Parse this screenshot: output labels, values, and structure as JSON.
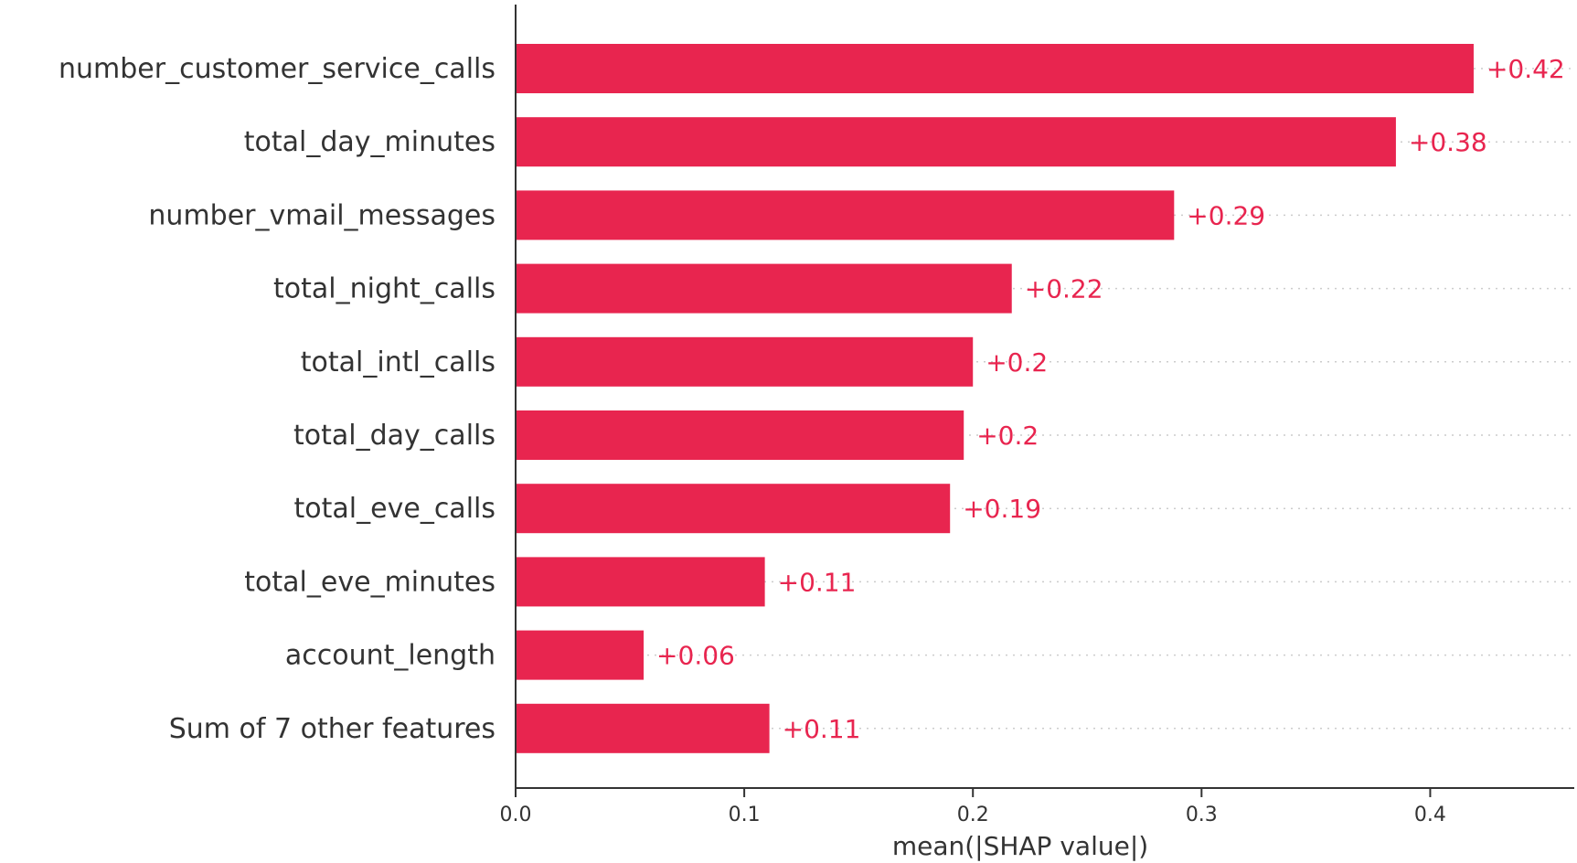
{
  "chart_data": {
    "type": "bar",
    "orientation": "horizontal",
    "categories": [
      "number_customer_service_calls",
      "total_day_minutes",
      "number_vmail_messages",
      "total_night_calls",
      "total_intl_calls",
      "total_day_calls",
      "total_eve_calls",
      "total_eve_minutes",
      "account_length",
      "Sum of 7 other features"
    ],
    "values": [
      0.419,
      0.385,
      0.288,
      0.217,
      0.2,
      0.196,
      0.19,
      0.109,
      0.056,
      0.111
    ],
    "value_labels": [
      "+0.42",
      "+0.38",
      "+0.29",
      "+0.22",
      "+0.2",
      "+0.2",
      "+0.19",
      "+0.11",
      "+0.06",
      "+0.11"
    ],
    "xlabel": "mean(|SHAP value|)",
    "ylabel": "",
    "title": "",
    "xlim": [
      0,
      0.463
    ],
    "xticks": [
      0.0,
      0.1,
      0.2,
      0.3,
      0.4
    ],
    "xtick_labels": [
      "0.0",
      "0.1",
      "0.2",
      "0.3",
      "0.4"
    ],
    "bar_color": "#e8254f",
    "value_label_color": "#e8254f",
    "gridlines": "dotted horizontal per bar",
    "legend": "none"
  }
}
